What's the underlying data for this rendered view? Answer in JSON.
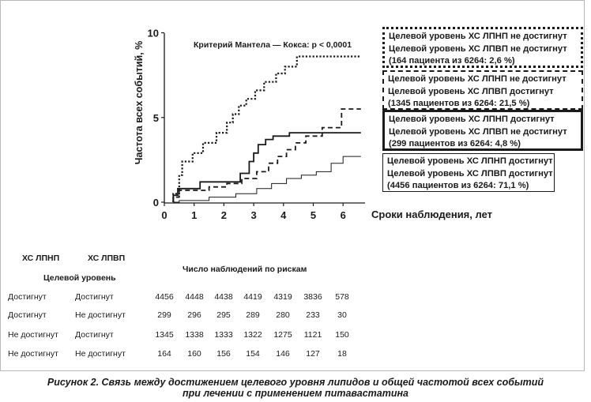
{
  "chart_data": {
    "type": "line",
    "step": true,
    "annotation": "Критерий Мантела — Кокса: p < 0,0001",
    "xlabel": "Сроки наблюдения, лет",
    "ylabel": "Частота всех событий, %",
    "xlim": [
      0,
      6.5
    ],
    "ylim": [
      0,
      10
    ],
    "x_ticks": [
      0,
      1,
      2,
      3,
      4,
      5,
      6
    ],
    "y_ticks": [
      0,
      5,
      10
    ],
    "series": [
      {
        "name": "Целевой уровень ХС ЛПНП не достигнут / Целевой уровень ХС ЛПВП не достигнут",
        "style": "dotted",
        "points": [
          [
            0.3,
            0
          ],
          [
            0.3,
            0.5
          ],
          [
            0.5,
            0.5
          ],
          [
            0.5,
            1.6
          ],
          [
            0.6,
            1.6
          ],
          [
            0.6,
            2.4
          ],
          [
            0.95,
            2.4
          ],
          [
            0.95,
            2.9
          ],
          [
            1.3,
            2.9
          ],
          [
            1.3,
            3.5
          ],
          [
            1.75,
            3.5
          ],
          [
            1.75,
            4.1
          ],
          [
            2.1,
            4.1
          ],
          [
            2.1,
            4.7
          ],
          [
            2.3,
            4.7
          ],
          [
            2.3,
            5.2
          ],
          [
            2.5,
            5.2
          ],
          [
            2.5,
            5.7
          ],
          [
            2.75,
            5.7
          ],
          [
            2.75,
            6.1
          ],
          [
            3.05,
            6.1
          ],
          [
            3.05,
            6.6
          ],
          [
            3.35,
            6.6
          ],
          [
            3.35,
            7.1
          ],
          [
            3.75,
            7.1
          ],
          [
            3.75,
            7.6
          ],
          [
            4.05,
            7.6
          ],
          [
            4.05,
            8.0
          ],
          [
            4.45,
            8.0
          ],
          [
            4.45,
            8.6
          ],
          [
            6.6,
            8.6
          ]
        ]
      },
      {
        "name": "Целевой уровень ХС ЛПНП не достигнут / Целевой уровень ХС ЛПВП достигнут",
        "style": "dashed",
        "points": [
          [
            0.3,
            0
          ],
          [
            0.3,
            0.3
          ],
          [
            0.5,
            0.3
          ],
          [
            0.5,
            0.7
          ],
          [
            1.5,
            0.7
          ],
          [
            1.5,
            0.9
          ],
          [
            2.1,
            0.9
          ],
          [
            2.1,
            1.1
          ],
          [
            2.6,
            1.1
          ],
          [
            2.6,
            1.4
          ],
          [
            3.1,
            1.4
          ],
          [
            3.1,
            1.8
          ],
          [
            3.5,
            1.8
          ],
          [
            3.5,
            2.3
          ],
          [
            3.8,
            2.3
          ],
          [
            3.8,
            2.7
          ],
          [
            4.1,
            2.7
          ],
          [
            4.1,
            3.1
          ],
          [
            4.4,
            3.1
          ],
          [
            4.4,
            3.5
          ],
          [
            4.75,
            3.5
          ],
          [
            4.75,
            3.9
          ],
          [
            5.3,
            3.9
          ],
          [
            5.3,
            4.4
          ],
          [
            5.95,
            4.4
          ],
          [
            5.95,
            5.5
          ],
          [
            6.6,
            5.5
          ]
        ]
      },
      {
        "name": "Целевой уровень ХС ЛПНП достигнут / Целевой уровень ХС ЛПВП не достигнут",
        "style": "solid-thick",
        "points": [
          [
            0.3,
            0
          ],
          [
            0.3,
            0.4
          ],
          [
            0.45,
            0.4
          ],
          [
            0.45,
            0.8
          ],
          [
            1.2,
            0.8
          ],
          [
            1.2,
            1.2
          ],
          [
            2.55,
            1.2
          ],
          [
            2.55,
            1.7
          ],
          [
            2.85,
            1.7
          ],
          [
            2.85,
            2.4
          ],
          [
            3.0,
            2.4
          ],
          [
            3.0,
            2.9
          ],
          [
            3.15,
            2.9
          ],
          [
            3.15,
            3.4
          ],
          [
            3.4,
            3.4
          ],
          [
            3.4,
            3.7
          ],
          [
            3.65,
            3.7
          ],
          [
            3.65,
            3.9
          ],
          [
            4.2,
            3.9
          ],
          [
            4.2,
            4.1
          ],
          [
            6.6,
            4.1
          ]
        ]
      },
      {
        "name": "Целевой уровень ХС ЛПНП достигнут / Целевой уровень ХС ЛПВП достигнут",
        "style": "solid-thin",
        "points": [
          [
            0.3,
            0
          ],
          [
            0.5,
            0
          ],
          [
            0.5,
            0.1
          ],
          [
            1.5,
            0.1
          ],
          [
            1.5,
            0.3
          ],
          [
            2.4,
            0.3
          ],
          [
            2.4,
            0.5
          ],
          [
            3.1,
            0.5
          ],
          [
            3.1,
            0.8
          ],
          [
            3.6,
            0.8
          ],
          [
            3.6,
            1.1
          ],
          [
            4.1,
            1.1
          ],
          [
            4.1,
            1.4
          ],
          [
            4.6,
            1.4
          ],
          [
            4.6,
            1.6
          ],
          [
            5.1,
            1.6
          ],
          [
            5.1,
            1.8
          ],
          [
            5.6,
            1.8
          ],
          [
            5.6,
            2.3
          ],
          [
            6.0,
            2.3
          ],
          [
            6.0,
            2.7
          ],
          [
            6.6,
            2.7
          ]
        ]
      }
    ]
  },
  "legend": [
    {
      "line1": "Целевой уровень ХС ЛПНП не достигнут",
      "line2": "Целевой уровень ХС ЛПВП не достигнут",
      "line3": "(164 пациента из 6264: 2,6 %)"
    },
    {
      "line1": "Целевой уровень ХС ЛПНП не достигнут",
      "line2": "Целевой уровень ХС ЛПВП достигнут",
      "line3": "(1345 пациентов из 6264: 21,5 %)"
    },
    {
      "line1": "Целевой уровень ХС ЛПНП достигнут",
      "line2": "Целевой уровень ХС ЛПВП не достигнут",
      "line3": "(299 пациентов из 6264: 4,8 %)"
    },
    {
      "line1": "Целевой уровень ХС ЛПНП достигнут",
      "line2": "Целевой уровень ХС ЛПВП достигнут",
      "line3": "(4456 пациентов из 6264: 71,1 %)"
    }
  ],
  "risk_table": {
    "col1_header": "ХС ЛПНП",
    "col2_header": "ХС ЛПВП",
    "group_header": "Целевой уровень",
    "numbers_header": "Число наблюдений по рискам",
    "rows": [
      {
        "ldl": "Достигнут",
        "hdl": "Достигнут",
        "values": [
          "4456",
          "4448",
          "4438",
          "4419",
          "4319",
          "3836",
          "578"
        ]
      },
      {
        "ldl": "Достигнут",
        "hdl": "Не достигнут",
        "values": [
          "299",
          "296",
          "295",
          "289",
          "280",
          "233",
          "30"
        ]
      },
      {
        "ldl": "Не достигнут",
        "hdl": "Достигнут",
        "values": [
          "1345",
          "1338",
          "1333",
          "1322",
          "1275",
          "1121",
          "150"
        ]
      },
      {
        "ldl": "Не достигнут",
        "hdl": "Не достигнут",
        "values": [
          "164",
          "160",
          "156",
          "154",
          "146",
          "127",
          "18"
        ]
      }
    ]
  },
  "caption": {
    "line1": "Рисунок 2. Связь между достижением целевого уровня липидов и общей частотой всех событий",
    "line2": "при лечении с применением питавастатина"
  }
}
